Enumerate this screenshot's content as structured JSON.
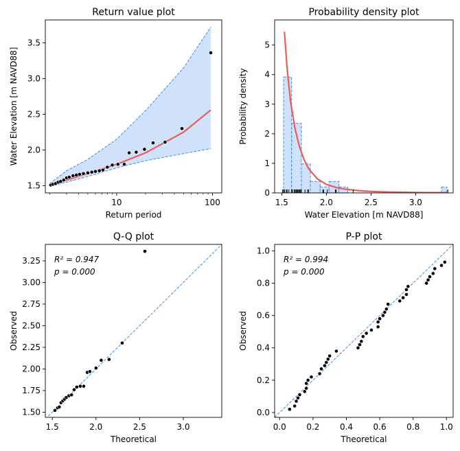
{
  "colors": {
    "fit_line": "#ef5a55",
    "ci_fill": "#cfe1fb",
    "ci_line": "#3f8fe0",
    "points": "#000000",
    "hist_fill": "#cfe1fb",
    "hist_edge": "#3f8fe0"
  },
  "chart_data": [
    {
      "id": "return",
      "type": "line",
      "title": "Return value plot",
      "xlabel": "Return period",
      "ylabel": "Water Elevation [m NAVD88]",
      "xscale": "log",
      "xlim": [
        1.8,
        125
      ],
      "ylim": [
        1.4,
        3.82
      ],
      "xticks": [
        10,
        100
      ],
      "xticklabels": [
        "10",
        "100"
      ],
      "yticks": [
        1.5,
        2.0,
        2.5,
        3.0,
        3.5
      ],
      "yticklabels": [
        "1.5",
        "2.0",
        "2.5",
        "3.0",
        "3.5"
      ],
      "grid": false,
      "series": [
        {
          "kind": "ci_band",
          "x": [
            2.0,
            3.0,
            5.0,
            10.0,
            20.0,
            50.0,
            96.0
          ],
          "lower": [
            1.49,
            1.55,
            1.63,
            1.75,
            1.85,
            1.95,
            2.02
          ],
          "upper": [
            1.53,
            1.71,
            1.87,
            2.15,
            2.55,
            3.15,
            3.72
          ]
        },
        {
          "kind": "fit",
          "x": [
            2.0,
            3.0,
            5.0,
            10.0,
            20.0,
            50.0,
            96.0
          ],
          "y": [
            1.5,
            1.58,
            1.67,
            1.8,
            1.96,
            2.25,
            2.56
          ]
        },
        {
          "kind": "observed",
          "x": [
            2.05,
            2.15,
            2.3,
            2.45,
            2.6,
            2.8,
            3.0,
            3.2,
            3.5,
            3.8,
            4.1,
            4.5,
            5.0,
            5.5,
            6.0,
            6.6,
            7.2,
            8.0,
            9.0,
            10.3,
            12.0,
            13.5,
            16.0,
            19.5,
            24.0,
            32.0,
            48.0,
            96.0
          ],
          "y": [
            1.51,
            1.52,
            1.53,
            1.55,
            1.56,
            1.58,
            1.61,
            1.62,
            1.64,
            1.65,
            1.66,
            1.67,
            1.68,
            1.69,
            1.7,
            1.71,
            1.72,
            1.76,
            1.79,
            1.8,
            1.8,
            1.96,
            1.97,
            2.01,
            2.1,
            2.11,
            2.3,
            3.36
          ]
        }
      ]
    },
    {
      "id": "pdf",
      "type": "bar",
      "title": "Probability density plot",
      "xlabel": "Water Elevation [m NAVD88]",
      "ylabel": "Probability density",
      "xlim": [
        1.42,
        3.42
      ],
      "ylim": [
        0,
        5.85
      ],
      "xticks": [
        1.5,
        2.0,
        2.5,
        3.0
      ],
      "xticklabels": [
        "1.5",
        "2.0",
        "2.5",
        "3.0"
      ],
      "yticks": [
        0,
        1,
        2,
        3,
        4,
        5
      ],
      "yticklabels": [
        "0",
        "1",
        "2",
        "3",
        "4",
        "5"
      ],
      "grid": false,
      "histogram": {
        "edges": [
          1.52,
          1.61,
          1.72,
          1.82,
          1.93,
          2.03,
          2.14,
          2.24,
          2.35,
          2.45,
          2.56,
          2.66,
          2.77,
          2.87,
          2.98,
          3.08,
          3.19,
          3.29,
          3.35
        ],
        "heights": [
          3.92,
          2.35,
          0.98,
          0.39,
          0.2,
          0.39,
          0.2,
          0,
          0,
          0,
          0,
          0,
          0,
          0,
          0,
          0,
          0,
          0.2
        ]
      },
      "curve": {
        "x": [
          1.53,
          1.56,
          1.6,
          1.65,
          1.7,
          1.75,
          1.8,
          1.9,
          2.0,
          2.1,
          2.2,
          2.35,
          2.5,
          2.7,
          2.9,
          3.1,
          3.35
        ],
        "y": [
          5.45,
          4.2,
          3.05,
          2.15,
          1.55,
          1.12,
          0.82,
          0.47,
          0.29,
          0.19,
          0.13,
          0.08,
          0.05,
          0.03,
          0.02,
          0.01,
          0.01
        ]
      },
      "rug": [
        1.51,
        1.52,
        1.53,
        1.55,
        1.56,
        1.58,
        1.61,
        1.62,
        1.64,
        1.65,
        1.66,
        1.67,
        1.68,
        1.69,
        1.7,
        1.71,
        1.72,
        1.76,
        1.79,
        1.8,
        1.96,
        1.97,
        2.01,
        2.1,
        2.11,
        2.3,
        3.36
      ]
    },
    {
      "id": "qq",
      "type": "scatter",
      "title": "Q-Q plot",
      "xlabel": "Theoretical",
      "ylabel": "Observed",
      "xlim": [
        1.42,
        3.44
      ],
      "ylim": [
        1.44,
        3.44
      ],
      "xticks": [
        1.5,
        2.0,
        2.5,
        3.0
      ],
      "xticklabels": [
        "1.5",
        "2.0",
        "2.5",
        "3.0"
      ],
      "yticks": [
        1.5,
        1.75,
        2.0,
        2.25,
        2.5,
        2.75,
        3.0,
        3.25
      ],
      "yticklabels": [
        "1.50",
        "1.75",
        "2.00",
        "2.25",
        "2.50",
        "2.75",
        "3.00",
        "3.25"
      ],
      "grid": false,
      "annotation": [
        "R² = 0.947",
        "p = 0.000"
      ],
      "diagonal": [
        [
          1.42,
          1.42
        ],
        [
          3.44,
          3.44
        ]
      ],
      "points": {
        "x": [
          1.53,
          1.56,
          1.58,
          1.6,
          1.62,
          1.64,
          1.66,
          1.69,
          1.72,
          1.75,
          1.78,
          1.82,
          1.86,
          1.9,
          1.93,
          2.0,
          2.06,
          2.15,
          2.3,
          2.56
        ],
        "y": [
          1.52,
          1.55,
          1.56,
          1.61,
          1.63,
          1.65,
          1.67,
          1.69,
          1.7,
          1.76,
          1.79,
          1.8,
          1.8,
          1.96,
          1.97,
          2.01,
          2.1,
          2.11,
          2.3,
          3.36
        ]
      }
    },
    {
      "id": "pp",
      "type": "scatter",
      "title": "P-P plot",
      "xlabel": "Theoretical",
      "ylabel": "Observed",
      "xlim": [
        -0.03,
        1.04
      ],
      "ylim": [
        -0.03,
        1.04
      ],
      "xticks": [
        0.0,
        0.2,
        0.4,
        0.6,
        0.8,
        1.0
      ],
      "xticklabels": [
        "0.0",
        "0.2",
        "0.4",
        "0.6",
        "0.8",
        "1.0"
      ],
      "yticks": [
        0.0,
        0.2,
        0.4,
        0.6,
        0.8,
        1.0
      ],
      "yticklabels": [
        "0.0",
        "0.2",
        "0.4",
        "0.6",
        "0.8",
        "1.0"
      ],
      "grid": false,
      "annotation": [
        "R² = 0.994",
        "p = 0.000"
      ],
      "diagonal": [
        [
          -0.03,
          -0.03
        ],
        [
          1.04,
          1.04
        ]
      ],
      "points": {
        "x": [
          0.06,
          0.09,
          0.1,
          0.11,
          0.12,
          0.15,
          0.16,
          0.16,
          0.17,
          0.19,
          0.24,
          0.25,
          0.27,
          0.28,
          0.29,
          0.3,
          0.34,
          0.47,
          0.48,
          0.49,
          0.5,
          0.52,
          0.55,
          0.59,
          0.59,
          0.6,
          0.62,
          0.63,
          0.64,
          0.65,
          0.72,
          0.74,
          0.76,
          0.76,
          0.77,
          0.88,
          0.89,
          0.9,
          0.92,
          0.93,
          0.97,
          0.99
        ],
        "y": [
          0.02,
          0.04,
          0.07,
          0.09,
          0.11,
          0.13,
          0.15,
          0.18,
          0.2,
          0.22,
          0.24,
          0.27,
          0.29,
          0.31,
          0.33,
          0.35,
          0.38,
          0.4,
          0.42,
          0.44,
          0.47,
          0.49,
          0.51,
          0.53,
          0.56,
          0.58,
          0.6,
          0.62,
          0.64,
          0.67,
          0.69,
          0.71,
          0.73,
          0.76,
          0.78,
          0.8,
          0.82,
          0.84,
          0.86,
          0.89,
          0.91,
          0.93
        ]
      }
    }
  ]
}
